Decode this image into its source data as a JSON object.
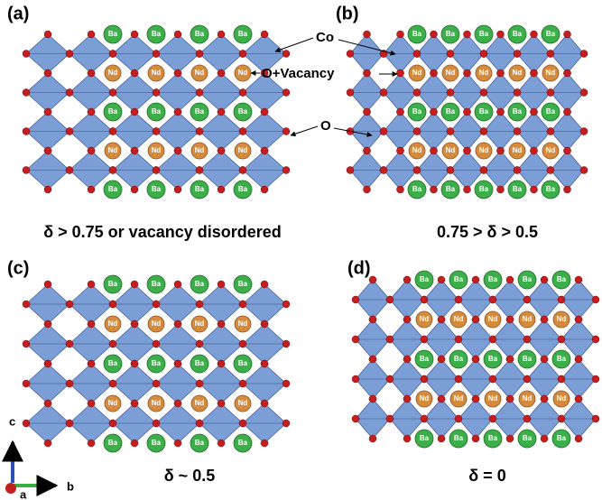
{
  "panels": [
    {
      "label": "(a)",
      "caption": "δ > 0.75 or vacancy disordered",
      "layers": [
        [
          "Ba",
          "Ba",
          "Ba",
          "Ba"
        ],
        [
          "Nd",
          "Nd",
          "Nd",
          "Nd"
        ],
        [
          "Ba",
          "Ba",
          "Ba",
          "Ba"
        ],
        [
          "Nd",
          "Nd",
          "Nd",
          "Nd"
        ],
        [
          "Ba",
          "Ba",
          "Ba",
          "Ba"
        ]
      ]
    },
    {
      "label": "(b)",
      "caption": "0.75 > δ > 0.5",
      "layers": [
        [
          "Ba",
          "Ba",
          "Ba",
          "Ba",
          "Ba"
        ],
        [
          "Nd",
          "Nd",
          "Nd",
          "Nd",
          "Nd"
        ],
        [
          "Ba",
          "Ba",
          "Ba",
          "Ba",
          "Ba"
        ],
        [
          "Nd",
          "Nd",
          "Nd",
          "Nd",
          "Nd"
        ],
        [
          "Ba",
          "Ba",
          "Ba",
          "Ba",
          "Ba"
        ]
      ]
    },
    {
      "label": "(c)",
      "caption": "δ ~ 0.5",
      "layers": [
        [
          "Ba",
          "Ba",
          "Ba",
          "Ba"
        ],
        [
          "Nd",
          "Nd",
          "Nd",
          "Nd"
        ],
        [
          "Ba",
          "Ba",
          "Ba",
          "Ba"
        ],
        [
          "Nd",
          "Nd",
          "Nd",
          "Nd"
        ],
        [
          "Ba",
          "Ba",
          "Ba",
          "Ba"
        ]
      ]
    },
    {
      "label": "(d)",
      "caption": "δ = 0",
      "layers": [
        [
          "Ba",
          "Ba",
          "Ba",
          "Ba",
          "Ba"
        ],
        [
          "Nd",
          "Nd",
          "Nd",
          "Nd",
          "Nd"
        ],
        [
          "Ba",
          "Ba",
          "Ba",
          "Ba",
          "Ba"
        ],
        [
          "Nd",
          "Nd",
          "Nd",
          "Nd",
          "Nd"
        ],
        [
          "Ba",
          "Ba",
          "Ba",
          "Ba",
          "Ba"
        ]
      ]
    }
  ],
  "annotations": [
    {
      "text": "Co"
    },
    {
      "text": "O+Vacancy"
    },
    {
      "text": "O"
    }
  ],
  "axes": {
    "c": "c",
    "b": "b",
    "a": "a"
  }
}
